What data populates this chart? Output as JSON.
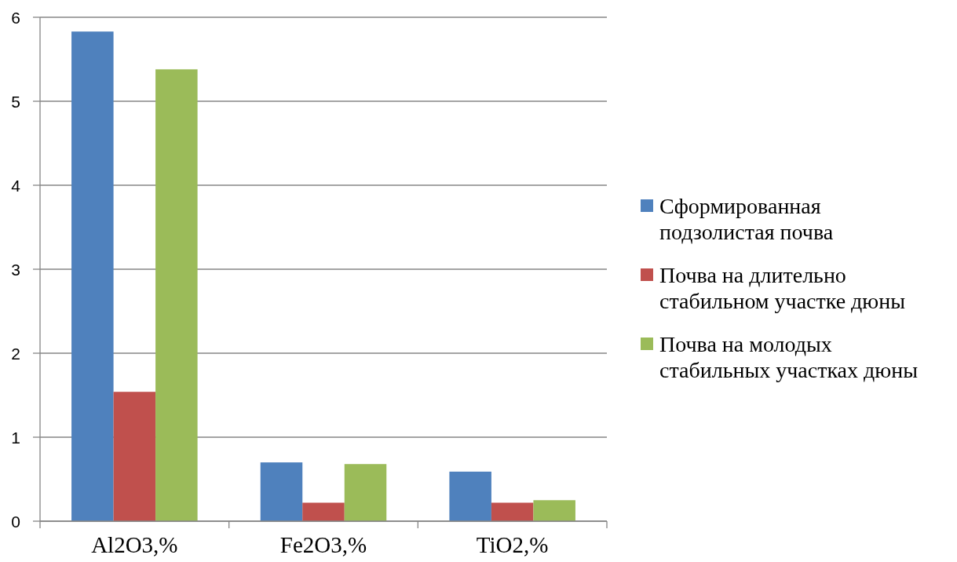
{
  "chart_data": {
    "type": "bar",
    "categories": [
      "Al2O3,%",
      "Fe2O3,%",
      "TiO2,%"
    ],
    "series": [
      {
        "name": "Сформированная подзолистая почва",
        "color": "#4f81bd",
        "values": [
          5.83,
          0.7,
          0.59
        ]
      },
      {
        "name": "Почва на длительно стабильном участке дюны",
        "color": "#c0504d",
        "values": [
          1.54,
          0.22,
          0.22
        ]
      },
      {
        "name": "Почва на молодых стабильных участках дюны",
        "color": "#9bbb59",
        "values": [
          5.38,
          0.68,
          0.25
        ]
      }
    ],
    "ylim": [
      0,
      6
    ],
    "yticks": [
      0,
      1,
      2,
      3,
      4,
      5,
      6
    ],
    "grid": "y",
    "legend": "right"
  }
}
